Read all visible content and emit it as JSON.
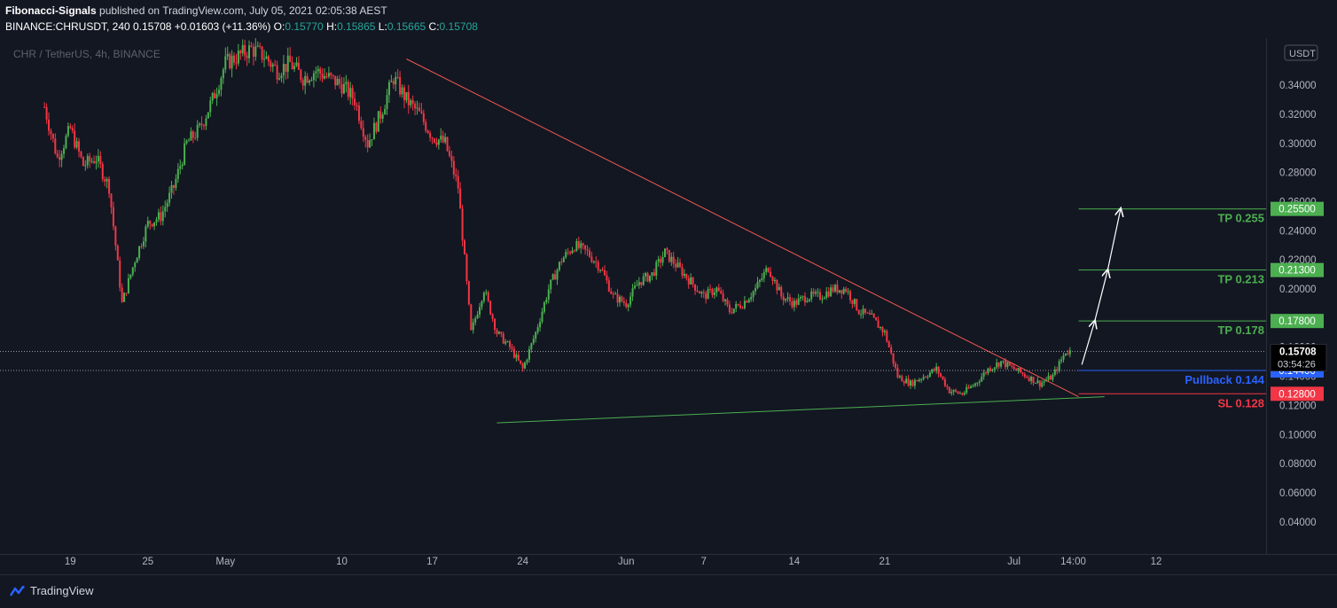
{
  "header": {
    "author": "Fibonacci-Signals",
    "published": "published on TradingView.com, July 05, 2021 02:05:38 AEST",
    "symbol": "BINANCE:CHRUSDT, 240",
    "price": "0.15708",
    "change": "+0.01603 (+11.36%)",
    "o_label": "O:",
    "o_val": "0.15770",
    "h_label": "H:",
    "h_val": "0.15865",
    "l_label": "L:",
    "l_val": "0.15665",
    "c_label": "C:",
    "c_val": "0.15708"
  },
  "chart_data": {
    "type": "candlestick",
    "title": "CHR / TetherUS, 4h, BINANCE",
    "currency": "USDT",
    "y_ticks": [
      0.34,
      0.32,
      0.3,
      0.28,
      0.26,
      0.24,
      0.22,
      0.2,
      0.18,
      0.16,
      0.14,
      0.12,
      0.1,
      0.08,
      0.06,
      0.04
    ],
    "y_tick_labels": [
      "0.34000",
      "0.32000",
      "0.30000",
      "0.28000",
      "0.26000",
      "0.24000",
      "0.22000",
      "0.20000",
      "0.18000",
      "0.16000",
      "0.14000",
      "0.12000",
      "0.10000",
      "0.08000",
      "0.06000",
      "0.04000"
    ],
    "ylim": [
      0.018,
      0.365
    ],
    "x_ticks": [
      "19",
      "25",
      "May",
      "10",
      "17",
      "24",
      "Jun",
      "7",
      "14",
      "21",
      "Jul",
      "14:00",
      "12"
    ],
    "x_tick_values": [
      "2021-04-19",
      "2021-04-25",
      "2021-05-01",
      "2021-05-10",
      "2021-05-17",
      "2021-05-24",
      "2021-06-01",
      "2021-06-07",
      "2021-06-14",
      "2021-06-21",
      "2021-07-01",
      "2021-07-05 14:00",
      "2021-07-12"
    ],
    "price_path": [
      [
        "2021-04-17",
        0.325
      ],
      [
        "2021-04-18",
        0.29
      ],
      [
        "2021-04-19",
        0.31
      ],
      [
        "2021-04-20",
        0.285
      ],
      [
        "2021-04-21",
        0.29
      ],
      [
        "2021-04-22",
        0.27
      ],
      [
        "2021-04-23",
        0.19
      ],
      [
        "2021-04-24",
        0.22
      ],
      [
        "2021-04-25",
        0.245
      ],
      [
        "2021-04-26",
        0.25
      ],
      [
        "2021-04-27",
        0.27
      ],
      [
        "2021-04-28",
        0.3
      ],
      [
        "2021-04-29",
        0.31
      ],
      [
        "2021-04-30",
        0.33
      ],
      [
        "2021-05-01",
        0.355
      ],
      [
        "2021-05-02",
        0.36
      ],
      [
        "2021-05-03",
        0.365
      ],
      [
        "2021-05-04",
        0.36
      ],
      [
        "2021-05-05",
        0.35
      ],
      [
        "2021-05-06",
        0.355
      ],
      [
        "2021-05-07",
        0.345
      ],
      [
        "2021-05-08",
        0.35
      ],
      [
        "2021-05-09",
        0.345
      ],
      [
        "2021-05-10",
        0.34
      ],
      [
        "2021-05-11",
        0.33
      ],
      [
        "2021-05-12",
        0.3
      ],
      [
        "2021-05-13",
        0.32
      ],
      [
        "2021-05-14",
        0.345
      ],
      [
        "2021-05-15",
        0.33
      ],
      [
        "2021-05-16",
        0.32
      ],
      [
        "2021-05-17",
        0.305
      ],
      [
        "2021-05-18",
        0.3
      ],
      [
        "2021-05-19",
        0.27
      ],
      [
        "2021-05-20",
        0.17
      ],
      [
        "2021-05-21",
        0.2
      ],
      [
        "2021-05-22",
        0.17
      ],
      [
        "2021-05-23",
        0.16
      ],
      [
        "2021-05-24",
        0.145
      ],
      [
        "2021-05-25",
        0.17
      ],
      [
        "2021-05-26",
        0.2
      ],
      [
        "2021-05-27",
        0.22
      ],
      [
        "2021-05-28",
        0.23
      ],
      [
        "2021-05-29",
        0.225
      ],
      [
        "2021-05-30",
        0.215
      ],
      [
        "2021-05-31",
        0.195
      ],
      [
        "2021-06-01",
        0.19
      ],
      [
        "2021-06-02",
        0.205
      ],
      [
        "2021-06-03",
        0.21
      ],
      [
        "2021-06-04",
        0.225
      ],
      [
        "2021-06-05",
        0.215
      ],
      [
        "2021-06-06",
        0.205
      ],
      [
        "2021-06-07",
        0.195
      ],
      [
        "2021-06-08",
        0.2
      ],
      [
        "2021-06-09",
        0.185
      ],
      [
        "2021-06-10",
        0.19
      ],
      [
        "2021-06-11",
        0.2
      ],
      [
        "2021-06-12",
        0.215
      ],
      [
        "2021-06-13",
        0.195
      ],
      [
        "2021-06-14",
        0.19
      ],
      [
        "2021-06-15",
        0.195
      ],
      [
        "2021-06-16",
        0.195
      ],
      [
        "2021-06-17",
        0.2
      ],
      [
        "2021-06-18",
        0.2
      ],
      [
        "2021-06-19",
        0.185
      ],
      [
        "2021-06-20",
        0.18
      ],
      [
        "2021-06-21",
        0.17
      ],
      [
        "2021-06-22",
        0.14
      ],
      [
        "2021-06-23",
        0.135
      ],
      [
        "2021-06-24",
        0.14
      ],
      [
        "2021-06-25",
        0.145
      ],
      [
        "2021-06-26",
        0.13
      ],
      [
        "2021-06-27",
        0.128
      ],
      [
        "2021-06-28",
        0.135
      ],
      [
        "2021-06-29",
        0.145
      ],
      [
        "2021-06-30",
        0.15
      ],
      [
        "2021-07-01",
        0.145
      ],
      [
        "2021-07-02",
        0.14
      ],
      [
        "2021-07-03",
        0.135
      ],
      [
        "2021-07-04",
        0.14
      ],
      [
        "2021-07-05",
        0.157
      ]
    ],
    "trendlines": [
      {
        "name": "descending-resistance",
        "from": [
          "2021-05-15",
          0.358
        ],
        "to": [
          "2021-07-06",
          0.126
        ]
      },
      {
        "name": "ascending-support",
        "from": [
          "2021-05-22",
          0.108
        ],
        "to": [
          "2021-07-08",
          0.126
        ]
      }
    ],
    "levels": [
      {
        "label": "TP 0.255",
        "value": 0.255,
        "tag": "0.25500",
        "color": "#4caf50",
        "bg": "#4caf50"
      },
      {
        "label": "TP 0.213",
        "value": 0.213,
        "tag": "0.21300",
        "color": "#4caf50",
        "bg": "#4caf50"
      },
      {
        "label": "TP 0.178",
        "value": 0.178,
        "tag": "0.17800",
        "color": "#4caf50",
        "bg": "#4caf50"
      },
      {
        "label": "Pullback 0.144",
        "value": 0.144,
        "tag": "0.14400",
        "color": "#2962ff",
        "bg": "#2962ff"
      },
      {
        "label": "SL 0.128",
        "value": 0.128,
        "tag": "0.12800",
        "color": "#f23645",
        "bg": "#f23645"
      }
    ],
    "current_price": {
      "value": 0.15708,
      "tag": "0.15708",
      "countdown": "03:54:26"
    },
    "grid": false
  },
  "footer": {
    "brand": "TradingView"
  }
}
